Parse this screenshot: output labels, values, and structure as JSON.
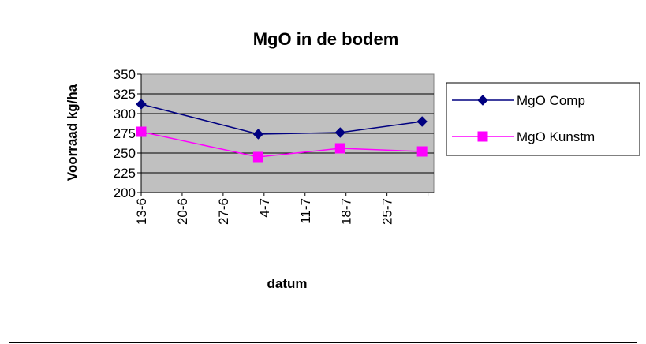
{
  "chart_data": {
    "type": "line",
    "title": "MgO in de bodem",
    "xlabel": "datum",
    "ylabel": "Voorraad kg/ha",
    "x_ticks": [
      "13-6",
      "20-6",
      "27-6",
      "4-7",
      "11-7",
      "18-7",
      "25-7"
    ],
    "x": [
      "13-6",
      "3-7",
      "17-7",
      "31-7"
    ],
    "x_day_index": [
      0,
      20,
      34,
      48
    ],
    "x_range": [
      0,
      50
    ],
    "ylim": [
      200,
      350
    ],
    "y_ticks": [
      200,
      225,
      250,
      275,
      300,
      325,
      350
    ],
    "grid": true,
    "plot_background": "#c0c0c0",
    "legend_position": "right",
    "series": [
      {
        "name": "MgO Comp",
        "color": "#000080",
        "marker": "diamond",
        "values": [
          312,
          274,
          276,
          290
        ]
      },
      {
        "name": "MgO Kunstm",
        "color": "#ff00ff",
        "marker": "square",
        "values": [
          277,
          245,
          256,
          252
        ]
      }
    ]
  }
}
